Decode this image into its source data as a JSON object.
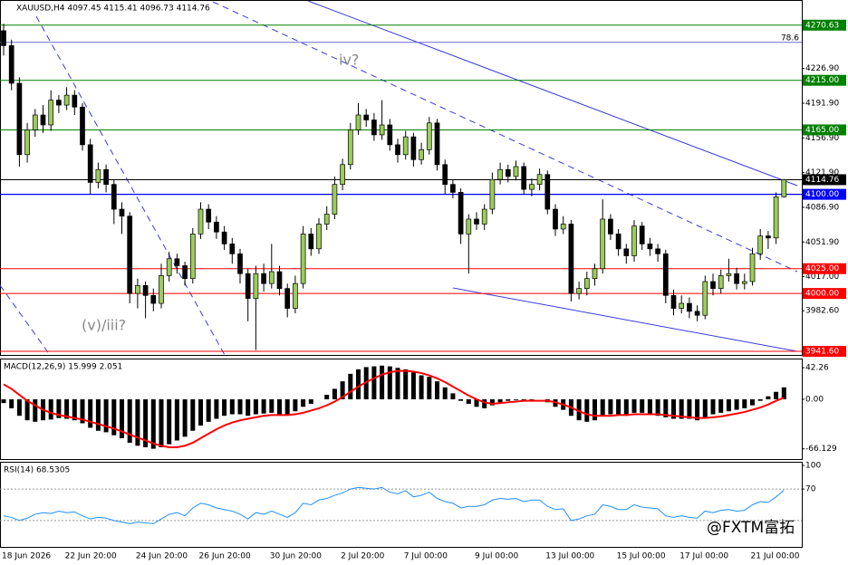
{
  "chart_data": [
    {
      "type": "candlestick",
      "title": "XAUUSD,H4 4097.45 4115.41 4096.73 4114.76",
      "categories": [
        "18 Jun 2026",
        null,
        null,
        null,
        null,
        null,
        null,
        null,
        "22 Jun 20:00",
        null,
        null,
        null,
        null,
        null,
        null,
        null,
        null,
        "24 Jun 20:00",
        null,
        null,
        null,
        null,
        null,
        null,
        null,
        "26 Jun 20:00",
        null,
        null,
        null,
        null,
        null,
        null,
        null,
        null,
        "30 Jun 20:00",
        null,
        null,
        null,
        null,
        null,
        null,
        null,
        null,
        "2 Jul 20:00",
        null,
        null,
        null,
        null,
        null,
        null,
        null,
        "7 Jul 00:00",
        null,
        null,
        null,
        null,
        null,
        null,
        null,
        null,
        "9 Jul 00:00",
        null,
        null,
        null,
        null,
        null,
        null,
        null,
        null,
        "13 Jul 00:00",
        null,
        null,
        null,
        null,
        null,
        null,
        null,
        null,
        "15 Jul 00:00",
        null,
        null,
        null,
        null,
        null,
        null,
        null,
        "17 Jul 00:00",
        null,
        null,
        null,
        null,
        null,
        null,
        null,
        null,
        "21 Jul 00:00",
        null,
        null,
        null,
        null
      ],
      "open": [
        4265,
        4250,
        4212,
        4140,
        4165,
        4180,
        4170,
        4195,
        4190,
        4200,
        4188,
        4150,
        4112,
        4125,
        4110,
        4085,
        4078,
        4000,
        4008,
        3998,
        3990,
        4018,
        4035,
        4028,
        4015,
        4060,
        4085,
        4072,
        4062,
        4050,
        4040,
        4020,
        3995,
        4020,
        4010,
        4022,
        4005,
        3985,
        4010,
        4060,
        4045,
        4070,
        4080,
        4110,
        4130,
        4165,
        4180,
        4175,
        4160,
        4170,
        4150,
        4140,
        4158,
        4135,
        4145,
        4172,
        4130,
        4110,
        4102,
        4060,
        4075,
        4070,
        4085,
        4115,
        4125,
        4118,
        4128,
        4105,
        4110,
        4120,
        4085,
        4065,
        4070,
        4000,
        4005,
        4015,
        4025,
        4075,
        4060,
        4045,
        4038,
        4068,
        4050,
        4045,
        4040,
        3998,
        3985,
        3990,
        3982,
        3978,
        4012,
        4005,
        4018,
        4020,
        4010,
        4012,
        4040,
        4058,
        4056,
        4097.45
      ],
      "high": [
        4272,
        4256,
        4218,
        4172,
        4186,
        4190,
        4205,
        4200,
        4208,
        4205,
        4192,
        4156,
        4132,
        4130,
        4115,
        4092,
        4082,
        4015,
        4012,
        4005,
        4030,
        4042,
        4040,
        4032,
        4066,
        4092,
        4090,
        4078,
        4068,
        4056,
        4045,
        4025,
        4028,
        4030,
        4050,
        4028,
        4010,
        4018,
        4068,
        4066,
        4076,
        4088,
        4118,
        4136,
        4172,
        4192,
        4186,
        4182,
        4195,
        4176,
        4156,
        4164,
        4162,
        4152,
        4178,
        4176,
        4135,
        4115,
        4106,
        4080,
        4082,
        4090,
        4122,
        4132,
        4130,
        4134,
        4132,
        4116,
        4126,
        4124,
        4090,
        4078,
        4074,
        4012,
        4022,
        4030,
        4095,
        4080,
        4065,
        4050,
        4074,
        4072,
        4056,
        4050,
        4044,
        4004,
        3998,
        3996,
        3988,
        4018,
        4020,
        4024,
        4035,
        4026,
        4020,
        4046,
        4065,
        4063,
        4102,
        4115.41
      ],
      "low": [
        4240,
        4205,
        4128,
        4132,
        4158,
        4162,
        4164,
        4182,
        4185,
        4180,
        4144,
        4100,
        4106,
        4102,
        4070,
        4060,
        3990,
        3985,
        3975,
        3982,
        3985,
        4012,
        4020,
        4008,
        4010,
        4055,
        4065,
        4055,
        4044,
        4030,
        4010,
        3972,
        3943,
        4002,
        4005,
        3998,
        3976,
        3980,
        4005,
        4038,
        4040,
        4064,
        4075,
        4104,
        4125,
        4160,
        4168,
        4154,
        4155,
        4144,
        4132,
        4135,
        4128,
        4130,
        4140,
        4124,
        4100,
        4096,
        4050,
        4020,
        4064,
        4064,
        4080,
        4110,
        4112,
        4114,
        4100,
        4098,
        4104,
        4080,
        4058,
        4060,
        3992,
        3994,
        3998,
        4008,
        4020,
        4054,
        4038,
        4030,
        4032,
        4044,
        4038,
        4032,
        3990,
        3978,
        3980,
        3975,
        3972,
        3974,
        3998,
        4000,
        4012,
        4004,
        4004,
        4008,
        4034,
        4045,
        4050,
        4096.73
      ],
      "close": [
        4250,
        4212,
        4140,
        4165,
        4180,
        4170,
        4195,
        4190,
        4200,
        4188,
        4150,
        4112,
        4125,
        4110,
        4085,
        4078,
        4000,
        4008,
        3998,
        3990,
        4018,
        4035,
        4028,
        4015,
        4060,
        4085,
        4072,
        4062,
        4050,
        4040,
        4020,
        3995,
        4020,
        4010,
        4022,
        4005,
        3985,
        4010,
        4060,
        4045,
        4070,
        4080,
        4110,
        4130,
        4165,
        4180,
        4175,
        4160,
        4170,
        4150,
        4140,
        4158,
        4135,
        4145,
        4172,
        4130,
        4110,
        4102,
        4060,
        4075,
        4070,
        4085,
        4115,
        4125,
        4118,
        4128,
        4105,
        4110,
        4120,
        4085,
        4065,
        4070,
        4000,
        4005,
        4015,
        4025,
        4075,
        4060,
        4045,
        4038,
        4068,
        4050,
        4045,
        4040,
        3998,
        3985,
        3990,
        3982,
        3978,
        4012,
        4005,
        4018,
        4020,
        4010,
        4012,
        4040,
        4058,
        4056,
        4097.45,
        4114.76
      ],
      "up_color": "#9acd5a",
      "down_color": "#000000",
      "ylim": [
        3938,
        4296
      ],
      "yticks": [
        {
          "value": 4226.9,
          "label": "4226.90"
        },
        {
          "value": 4191.9,
          "label": "4191.90"
        },
        {
          "value": 4156.9,
          "label": "4156.90"
        },
        {
          "value": 4121.9,
          "label": "4121.90"
        },
        {
          "value": 4086.9,
          "label": "4086.90"
        },
        {
          "value": 4051.9,
          "label": "4051.90"
        },
        {
          "value": 4017,
          "label": "4017.00"
        },
        {
          "value": 3982.6,
          "label": "3982.60"
        }
      ],
      "levels": [
        {
          "value": 4270.63,
          "color": "#008000"
        },
        {
          "value": 4215,
          "label": "4215.00",
          "color": "#008000"
        },
        {
          "value": 4165,
          "label": "4165.00",
          "color": "#008000"
        },
        {
          "value": 4114.76,
          "color": "#000000"
        },
        {
          "value": 4100,
          "label": "4100.00",
          "color": "#0000ff"
        },
        {
          "value": 4025,
          "label": "4025.00",
          "color": "#ff0000"
        },
        {
          "value": 4000,
          "label": "4000.00",
          "color": "#ff0000"
        },
        {
          "value": 3941.6,
          "label": "3941.60",
          "color": "#ff0000"
        }
      ],
      "fib_level": {
        "value": 4253.3,
        "label": "78.6",
        "color": "#6b6bd6"
      },
      "annotations": [
        "iv?",
        "(v)/iii?"
      ],
      "watermark": "@FXTM富拓"
    },
    {
      "type": "macd",
      "title": "MACD(12,26,9) 15.999 2.051",
      "histogram": [
        -5,
        -12,
        -22,
        -28,
        -30,
        -28,
        -27,
        -25,
        -26,
        -28,
        -32,
        -38,
        -42,
        -44,
        -48,
        -52,
        -58,
        -62,
        -64,
        -66,
        -64,
        -60,
        -55,
        -50,
        -42,
        -35,
        -30,
        -26,
        -22,
        -20,
        -20,
        -22,
        -20,
        -19,
        -18,
        -20,
        -21,
        -16,
        -10,
        -6,
        0,
        6,
        14,
        24,
        34,
        40,
        43,
        44,
        45,
        44,
        42,
        40,
        36,
        32,
        30,
        24,
        16,
        8,
        -2,
        -6,
        -10,
        -12,
        -8,
        -4,
        -2,
        -1,
        -2,
        -1,
        0,
        -4,
        -10,
        -14,
        -22,
        -28,
        -30,
        -28,
        -22,
        -20,
        -20,
        -22,
        -18,
        -18,
        -20,
        -22,
        -24,
        -26,
        -26,
        -26,
        -28,
        -24,
        -20,
        -18,
        -16,
        -14,
        -12,
        -8,
        -2,
        4,
        10,
        15.999
      ],
      "signal": [
        20,
        14,
        6,
        -2,
        -8,
        -14,
        -18,
        -21,
        -23,
        -25,
        -27,
        -30,
        -33,
        -36,
        -39,
        -43,
        -47,
        -51,
        -55,
        -59,
        -62,
        -64,
        -64,
        -62,
        -58,
        -52,
        -46,
        -40,
        -35,
        -31,
        -28,
        -26,
        -24,
        -22,
        -21,
        -21,
        -21,
        -20,
        -18,
        -15,
        -12,
        -8,
        -3,
        3,
        10,
        17,
        23,
        28,
        33,
        36,
        38,
        38,
        37,
        35,
        32,
        28,
        23,
        17,
        11,
        5,
        0,
        -4,
        -6,
        -5,
        -4,
        -3,
        -2,
        -2,
        -2,
        -2,
        -4,
        -7,
        -11,
        -16,
        -20,
        -22,
        -22,
        -22,
        -21,
        -21,
        -20,
        -20,
        -20,
        -20,
        -21,
        -22,
        -23,
        -24,
        -25,
        -25,
        -24,
        -23,
        -21,
        -19,
        -17,
        -14,
        -11,
        -7,
        -2,
        2.051
      ],
      "bar_color": "#000000",
      "signal_color": "#ff0000",
      "ylim": [
        -81,
        52
      ],
      "yticks": [
        42.26,
        {
          "value": 0,
          "label": "0.00"
        },
        -66.129
      ]
    },
    {
      "type": "line",
      "title": "RSI(14) 68.5305",
      "values": [
        36,
        34,
        30,
        33,
        38,
        40,
        39,
        42,
        40,
        41,
        36,
        32,
        34,
        33,
        30,
        28,
        26,
        28,
        27,
        26,
        32,
        38,
        40,
        36,
        46,
        52,
        50,
        46,
        44,
        42,
        38,
        32,
        40,
        38,
        42,
        38,
        34,
        40,
        52,
        50,
        56,
        58,
        62,
        65,
        70,
        72,
        71,
        70,
        72,
        66,
        64,
        68,
        60,
        62,
        66,
        58,
        54,
        52,
        46,
        48,
        48,
        50,
        56,
        58,
        57,
        58,
        54,
        56,
        56,
        48,
        44,
        45,
        30,
        32,
        36,
        38,
        50,
        48,
        44,
        44,
        50,
        47,
        46,
        45,
        36,
        34,
        36,
        34,
        33,
        42,
        40,
        43,
        44,
        42,
        43,
        50,
        54,
        53,
        60,
        68.5305
      ],
      "color": "#1e90ff",
      "ylim": [
        0,
        100
      ],
      "yticks": [
        100,
        70
      ],
      "levels": [
        70,
        30
      ]
    }
  ]
}
